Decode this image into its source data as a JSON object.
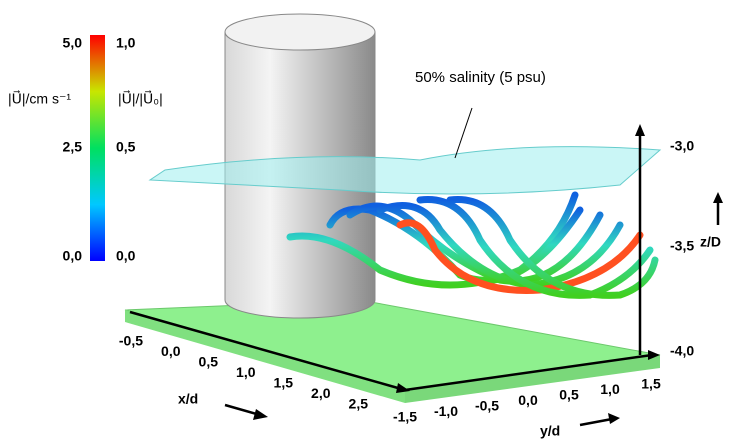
{
  "colorbar": {
    "label_left": "|U⃗|/cm s⁻¹",
    "label_right": "|U⃗|/|U⃗₀|",
    "ticks_left": [
      "5,0",
      "2,5",
      "0,0"
    ],
    "ticks_right": [
      "1,0",
      "0,5",
      "0,0"
    ]
  },
  "annotation": "50% salinity (5 psu)",
  "x_axis": {
    "label": "x/d",
    "ticks": [
      "-0,5",
      "0,0",
      "0,5",
      "1,0",
      "1,5",
      "2,0",
      "2,5"
    ]
  },
  "y_axis": {
    "label": "y/d",
    "ticks": [
      "-1,5",
      "-1,0",
      "-0,5",
      "0,0",
      "0,5",
      "1,0",
      "1,5"
    ]
  },
  "z_axis": {
    "label": "z/D",
    "ticks": [
      "-3,0",
      "-3,5",
      "-4,0"
    ]
  }
}
